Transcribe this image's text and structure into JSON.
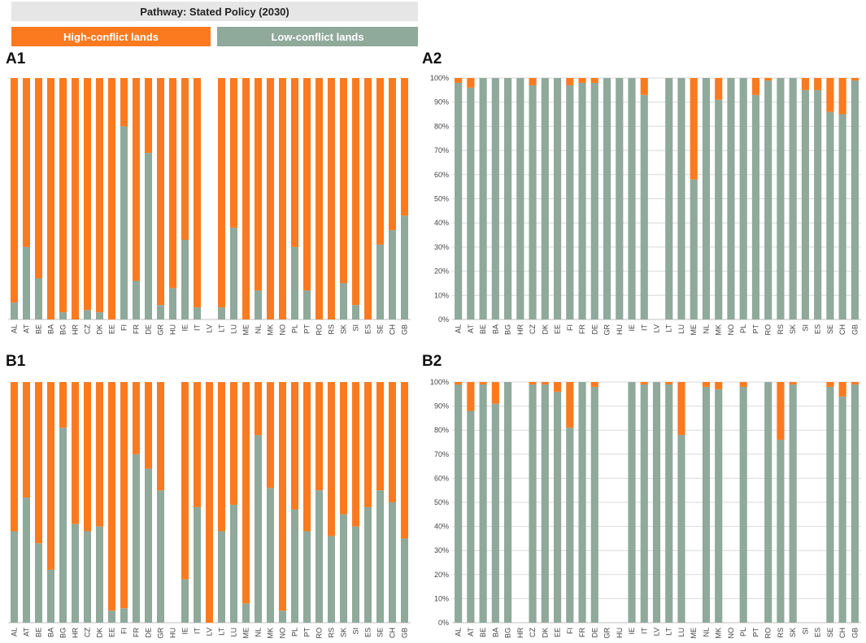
{
  "header": {
    "title": "Pathway: Stated Policy (2030)",
    "legend_high": "High-conflict lands",
    "legend_low": "Low-conflict lands"
  },
  "colors": {
    "high": "#fb7a1f",
    "low": "#8fa99b",
    "grid": "#d9d9d9"
  },
  "chart_data": [
    {
      "id": "A1",
      "type": "bar",
      "stacked": true,
      "ylim": [
        0,
        100
      ],
      "show_yaxis": false,
      "categories": [
        "AL",
        "AT",
        "BE",
        "BA",
        "BG",
        "HR",
        "CZ",
        "DK",
        "EE",
        "FI",
        "FR",
        "DE",
        "GR",
        "HU",
        "IE",
        "IT",
        "LV",
        "LT",
        "LU",
        "ME",
        "NL",
        "MK",
        "NO",
        "PL",
        "PT",
        "RO",
        "RS",
        "SK",
        "SI",
        "ES",
        "SE",
        "CH",
        "GB"
      ],
      "series": [
        {
          "name": "Low-conflict lands",
          "values": [
            7,
            30,
            17,
            0,
            3,
            0,
            4,
            3,
            0,
            80,
            16,
            69,
            6,
            13,
            33,
            5,
            null,
            5,
            38,
            0,
            12,
            0,
            0,
            30,
            12,
            0,
            0,
            15,
            6,
            0,
            31,
            37,
            43
          ]
        },
        {
          "name": "High-conflict lands",
          "values": [
            93,
            70,
            83,
            100,
            97,
            100,
            96,
            97,
            100,
            20,
            84,
            31,
            94,
            87,
            67,
            95,
            null,
            95,
            62,
            100,
            88,
            100,
            100,
            70,
            88,
            100,
            100,
            85,
            94,
            100,
            69,
            63,
            57
          ]
        }
      ]
    },
    {
      "id": "A2",
      "type": "bar",
      "stacked": true,
      "ylim": [
        0,
        100
      ],
      "show_yaxis": true,
      "yticks": [
        "0%",
        "10%",
        "20%",
        "30%",
        "40%",
        "50%",
        "60%",
        "70%",
        "80%",
        "90%",
        "100%"
      ],
      "categories": [
        "AL",
        "AT",
        "BE",
        "BA",
        "BG",
        "HR",
        "CZ",
        "DK",
        "EE",
        "FI",
        "FR",
        "DE",
        "GR",
        "HU",
        "IE",
        "IT",
        "LV",
        "LT",
        "LU",
        "ME",
        "NL",
        "MK",
        "NO",
        "PL",
        "PT",
        "RO",
        "RS",
        "SK",
        "SI",
        "ES",
        "SE",
        "CH",
        "GB"
      ],
      "series": [
        {
          "name": "Low-conflict lands",
          "values": [
            98,
            96,
            100,
            100,
            100,
            100,
            97,
            100,
            100,
            97,
            98,
            98,
            100,
            100,
            100,
            93,
            null,
            100,
            100,
            58,
            100,
            91,
            100,
            100,
            93,
            99,
            100,
            100,
            95,
            95,
            86,
            85,
            99
          ]
        },
        {
          "name": "High-conflict lands",
          "values": [
            2,
            4,
            0,
            0,
            0,
            0,
            3,
            0,
            0,
            3,
            2,
            2,
            0,
            0,
            0,
            7,
            null,
            0,
            0,
            42,
            0,
            9,
            0,
            0,
            7,
            1,
            0,
            0,
            5,
            5,
            14,
            15,
            1
          ]
        }
      ]
    },
    {
      "id": "B1",
      "type": "bar",
      "stacked": true,
      "ylim": [
        0,
        100
      ],
      "show_yaxis": false,
      "categories": [
        "AL",
        "AT",
        "BE",
        "BA",
        "BG",
        "HR",
        "CZ",
        "DK",
        "EE",
        "FI",
        "FR",
        "DE",
        "GR",
        "HU",
        "IE",
        "IT",
        "LV",
        "LT",
        "LU",
        "ME",
        "NL",
        "MK",
        "NO",
        "PL",
        "PT",
        "RO",
        "RS",
        "SK",
        "SI",
        "ES",
        "SE",
        "CH",
        "GB"
      ],
      "series": [
        {
          "name": "Low-conflict lands",
          "values": [
            38,
            52,
            33,
            22,
            81,
            41,
            38,
            40,
            5,
            6,
            70,
            64,
            55,
            null,
            18,
            48,
            0,
            38,
            49,
            8,
            78,
            56,
            5,
            47,
            38,
            55,
            36,
            45,
            40,
            48,
            55,
            50,
            35
          ]
        },
        {
          "name": "High-conflict lands",
          "values": [
            62,
            48,
            67,
            78,
            19,
            59,
            62,
            60,
            95,
            94,
            30,
            36,
            45,
            null,
            82,
            52,
            100,
            62,
            51,
            92,
            22,
            44,
            95,
            53,
            62,
            45,
            64,
            55,
            60,
            52,
            45,
            50,
            65
          ]
        }
      ]
    },
    {
      "id": "B2",
      "type": "bar",
      "stacked": true,
      "ylim": [
        0,
        100
      ],
      "show_yaxis": true,
      "yticks": [
        "0%",
        "10%",
        "20%",
        "30%",
        "40%",
        "50%",
        "60%",
        "70%",
        "80%",
        "90%",
        "100%"
      ],
      "categories": [
        "AL",
        "AT",
        "BE",
        "BA",
        "BG",
        "HR",
        "CZ",
        "DK",
        "EE",
        "FI",
        "FR",
        "DE",
        "GR",
        "HU",
        "IE",
        "IT",
        "LV",
        "LT",
        "LU",
        "ME",
        "NL",
        "MK",
        "NO",
        "PL",
        "PT",
        "RO",
        "RS",
        "SK",
        "SI",
        "ES",
        "SE",
        "CH",
        "GB"
      ],
      "series": [
        {
          "name": "Low-conflict lands",
          "values": [
            99,
            88,
            99,
            91,
            100,
            null,
            99,
            99,
            96,
            81,
            100,
            98,
            null,
            null,
            100,
            99,
            100,
            99,
            78,
            null,
            98,
            97,
            null,
            98,
            null,
            100,
            76,
            99,
            null,
            null,
            98,
            94,
            99
          ]
        },
        {
          "name": "High-conflict lands",
          "values": [
            1,
            12,
            1,
            9,
            0,
            null,
            1,
            1,
            4,
            19,
            0,
            2,
            null,
            null,
            0,
            1,
            0,
            1,
            22,
            null,
            2,
            3,
            null,
            2,
            null,
            0,
            24,
            1,
            null,
            null,
            2,
            6,
            1
          ]
        }
      ]
    }
  ]
}
